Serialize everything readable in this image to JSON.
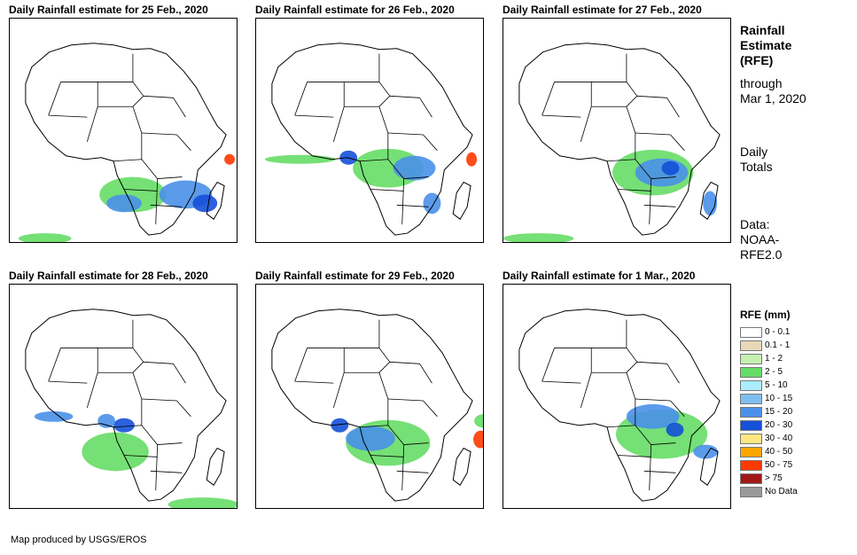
{
  "panels": [
    {
      "title": "Daily Rainfall estimate for 25 Feb., 2020",
      "key": "feb25"
    },
    {
      "title": "Daily Rainfall estimate for 26 Feb., 2020",
      "key": "feb26"
    },
    {
      "title": "Daily Rainfall estimate for 27 Feb., 2020",
      "key": "feb27"
    },
    {
      "title": "Daily Rainfall estimate for 28 Feb., 2020",
      "key": "feb28"
    },
    {
      "title": "Daily Rainfall estimate for 29 Feb., 2020",
      "key": "feb29"
    },
    {
      "title": "Daily Rainfall estimate for 1 Mar., 2020",
      "key": "mar1"
    }
  ],
  "sidebar": {
    "title_line1": "Rainfall",
    "title_line2": "Estimate",
    "title_line3": "(RFE)",
    "through_line1": "through",
    "through_line2": "Mar 1, 2020",
    "totals_line1": "Daily",
    "totals_line2": "Totals",
    "data_line1": "Data:",
    "data_line2": "NOAA-",
    "data_line3": "RFE2.0"
  },
  "legend": {
    "title": "RFE (mm)",
    "items": [
      {
        "label": "0 - 0.1",
        "color": "#ffffff"
      },
      {
        "label": "0.1 - 1",
        "color": "#e8d8b8"
      },
      {
        "label": "1 - 2",
        "color": "#c4f0b0"
      },
      {
        "label": "2 - 5",
        "color": "#66dd66"
      },
      {
        "label": "5 - 10",
        "color": "#aaeeff"
      },
      {
        "label": "10 - 15",
        "color": "#7fbff0"
      },
      {
        "label": "15 - 20",
        "color": "#4a90e8"
      },
      {
        "label": "20 - 30",
        "color": "#1450d8"
      },
      {
        "label": "30 - 40",
        "color": "#ffe680"
      },
      {
        "label": "40 - 50",
        "color": "#ffa500"
      },
      {
        "label": "50 - 75",
        "color": "#ff3a00"
      },
      {
        "label": "> 75",
        "color": "#a01818"
      },
      {
        "label": "No Data",
        "color": "#999999"
      }
    ]
  },
  "credit": "Map produced by USGS/EROS"
}
